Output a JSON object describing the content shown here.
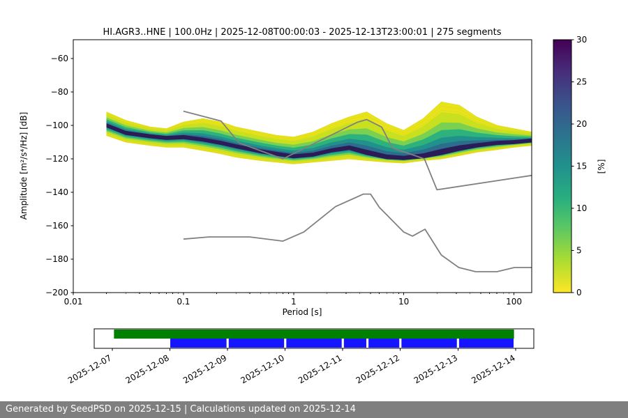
{
  "title": "HI.AGR3..HNE | 100.0Hz | 2025-12-08T00:00:03 - 2025-12-13T23:00:01 | 275 segments",
  "statusbar": {
    "text": "Generated by SeedPSD on 2025-12-15 | Calculations updated on 2025-12-14",
    "bg_color": "#7f7f7f",
    "text_color": "#ffffff"
  },
  "chart_data": {
    "type": "heatmap",
    "subtype": "ppsd-probabilistic-power-spectral-density",
    "title": "HI.AGR3..HNE | 100.0Hz | 2025-12-08T00:00:03 - 2025-12-13T23:00:01 | 275 segments",
    "xlabel": "Period [s]",
    "ylabel": "Amplitude [m²/s⁴/Hz] [dB]",
    "xscale": "log",
    "xlim": [
      0.01,
      145
    ],
    "ylim": [
      -200,
      -48.75
    ],
    "grid": false,
    "xticks": {
      "values": [
        0.01,
        0.1,
        1,
        10,
        100
      ],
      "labels": [
        "0.01",
        "0.1",
        "1",
        "10",
        "100"
      ]
    },
    "yticks": {
      "values": [
        -200,
        -180,
        -160,
        -140,
        -120,
        -100,
        -80,
        -60
      ],
      "labels": [
        "−200",
        "−180",
        "−160",
        "−140",
        "−120",
        "−100",
        "−80",
        "−60"
      ]
    },
    "colorbar": {
      "label": "[%]",
      "range": [
        0,
        30
      ],
      "ticks": [
        0,
        5,
        10,
        15,
        20,
        25,
        30
      ],
      "cmap": "viridis_r",
      "stops": [
        "#fde725",
        "#addc30",
        "#5ec962",
        "#28ae80",
        "#21918c",
        "#2c728e",
        "#3b528b",
        "#472d7b",
        "#440154"
      ]
    },
    "noise_models": {
      "color": "#808080",
      "high": {
        "periods": [
          0.1,
          0.22,
          0.32,
          0.8,
          3.8,
          4.6,
          6.3,
          7.9,
          15.4,
          20.0,
          145.0
        ],
        "db": [
          -91.5,
          -97.4,
          -110.5,
          -120.0,
          -98.1,
          -96.5,
          -101.0,
          -113.5,
          -120.0,
          -138.5,
          -129.9
        ]
      },
      "low": {
        "periods": [
          0.1,
          0.17,
          0.4,
          0.8,
          1.24,
          2.4,
          4.3,
          5.0,
          6.0,
          10.0,
          12.0,
          15.6,
          21.9,
          31.6,
          45.0,
          70.0,
          101.0,
          145.0
        ],
        "db": [
          -168.0,
          -166.7,
          -166.7,
          -169.2,
          -163.7,
          -148.6,
          -141.1,
          -141.1,
          -149.0,
          -163.8,
          -166.2,
          -162.1,
          -177.5,
          -185.0,
          -187.5,
          -187.5,
          -185.0,
          -185.0
        ]
      }
    },
    "psd_distribution": {
      "periods": [
        0.02,
        0.03,
        0.05,
        0.07,
        0.1,
        0.15,
        0.22,
        0.3,
        0.5,
        0.7,
        1.0,
        1.5,
        2.2,
        3.2,
        4.6,
        7.0,
        10.0,
        15.0,
        22.0,
        32.0,
        46.0,
        70.0,
        100.0,
        145.0
      ],
      "mode_db": [
        -100,
        -104.5,
        -106.5,
        -107.5,
        -107,
        -108.5,
        -110.5,
        -112.5,
        -115.5,
        -117,
        -118.5,
        -117.5,
        -115,
        -113.5,
        -116.5,
        -119,
        -119.5,
        -118.5,
        -116.5,
        -114,
        -112,
        -110.5,
        -110,
        -109
      ],
      "max_db": [
        -92,
        -97,
        -101,
        -102,
        -98,
        -96,
        -98,
        -101,
        -104,
        -106,
        -107,
        -104,
        -99,
        -95,
        -92,
        -99,
        -103,
        -96,
        -86,
        -88,
        -95,
        -100,
        -102,
        -104
      ],
      "min_db": [
        -106,
        -110,
        -112,
        -113,
        -113,
        -115,
        -117,
        -119,
        -121,
        -122,
        -123,
        -122,
        -121,
        -120,
        -121,
        -122,
        -122.5,
        -121,
        -120,
        -118,
        -116,
        -114.5,
        -113,
        -112
      ],
      "band_fractions": [
        1.0,
        0.8,
        0.6,
        0.45,
        0.3,
        0.18,
        0.08
      ],
      "band_colors": [
        "#e8e419",
        "#c8e020",
        "#7ad151",
        "#2db27d",
        "#21918c",
        "#2c6d8e",
        "#2b1c57"
      ]
    }
  },
  "timeline": {
    "border_color": "#000000",
    "segments_top": {
      "color": "#008000",
      "ranges": [
        [
          0.045,
          0.955
        ]
      ]
    },
    "segments_bottom": {
      "color": "#1515ff",
      "ranges": [
        [
          0.173,
          0.301
        ],
        [
          0.306,
          0.432
        ],
        [
          0.437,
          0.563
        ],
        [
          0.568,
          0.619
        ],
        [
          0.624,
          0.694
        ],
        [
          0.699,
          0.825
        ],
        [
          0.83,
          0.954
        ]
      ]
    },
    "date_labels": [
      "2025-12-07",
      "2025-12-08",
      "2025-12-09",
      "2025-12-10",
      "2025-12-11",
      "2025-12-12",
      "2025-12-13",
      "2025-12-14"
    ],
    "date_fracs": [
      0.041,
      0.172,
      0.303,
      0.434,
      0.565,
      0.696,
      0.828,
      0.959
    ]
  }
}
